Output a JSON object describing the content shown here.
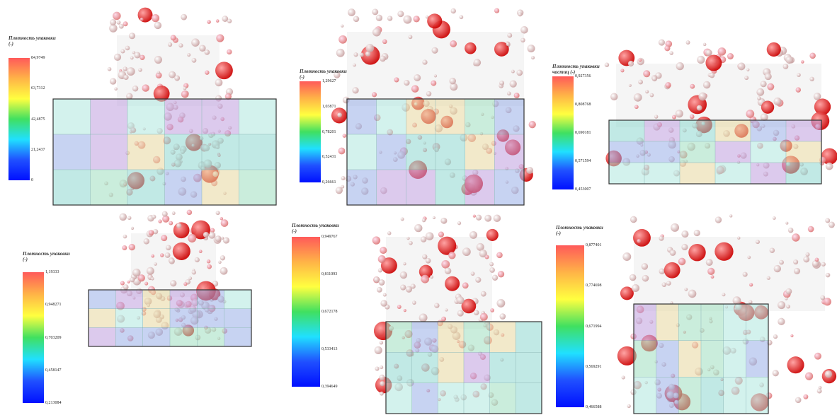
{
  "panels": [
    {
      "legend_title": "Плотность упаковки (-)",
      "ticks": [
        "84,9749",
        "63,7312",
        "42,4875",
        "21,2437",
        "0"
      ]
    },
    {
      "legend_title": "Плотность упаковки (-)",
      "ticks": [
        "1,29627",
        "1,03871",
        "0,78201",
        "0,52431",
        "0,26661"
      ]
    },
    {
      "legend_title": "Плотность упаковки частиц (-)",
      "ticks": [
        "0,927356",
        "0,808768",
        "0,690181",
        "0,571594",
        "0,453007"
      ]
    },
    {
      "legend_title": "Плотность упаковки (-)",
      "ticks": [
        "1,19333",
        "0,948271",
        "0,703209",
        "0,458147",
        "0,213084"
      ]
    },
    {
      "legend_title": "Плотность упаковки (-)",
      "ticks": [
        "0,949767",
        "0,811093",
        "0,672178",
        "0,533413",
        "0,394649"
      ]
    },
    {
      "legend_title": "Плотность упаковки (-)",
      "ticks": [
        "0,877401",
        "0,774698",
        "0,671994",
        "0,569291",
        "0,466588"
      ]
    }
  ]
}
